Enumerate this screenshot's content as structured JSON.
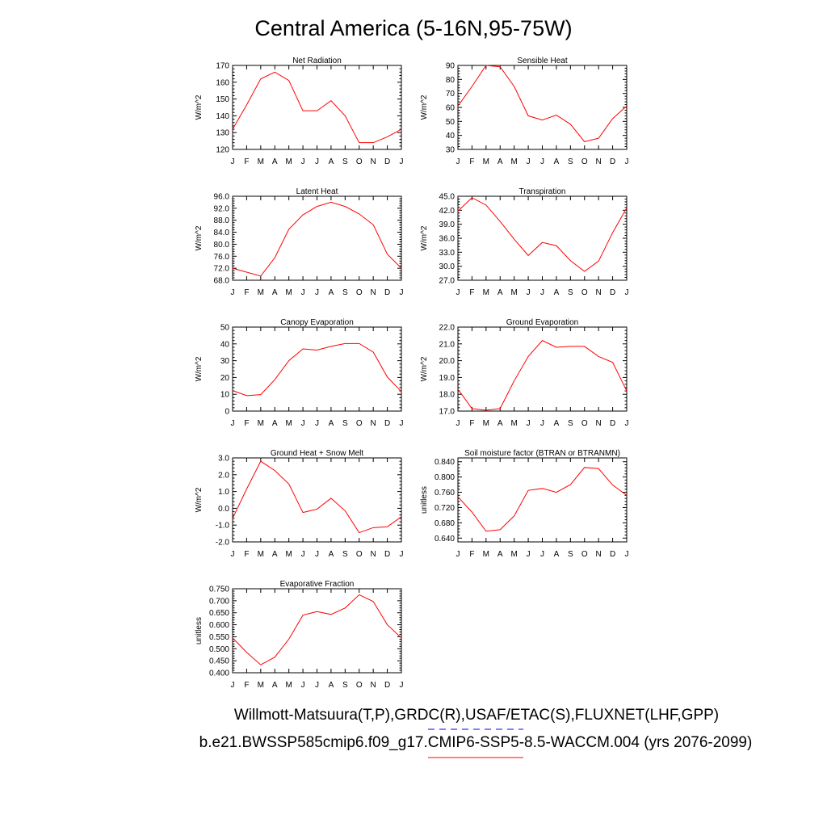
{
  "figure": {
    "title": "Central America (5-16N,95-75W)",
    "legend": [
      {
        "text": "Willmott-Matsuura(T,P),GRDC(R),USAF/ETAC(S),FLUXNET(LHF,GPP)",
        "color": "#0000ff",
        "style": "dashed"
      },
      {
        "text": "b.e21.BWSSP585cmip6.f09_g17.CMIP6-SSP5-8.5-WACCM.004 (yrs 2076-2099)",
        "color": "#ff0000",
        "style": "solid"
      }
    ],
    "months": [
      "J",
      "F",
      "M",
      "A",
      "M",
      "J",
      "J",
      "A",
      "S",
      "O",
      "N",
      "D",
      "J"
    ],
    "line_color": "#ff0000"
  },
  "chart_data": [
    {
      "type": "line",
      "title": "Net Radiation",
      "ylabel": "W/m^2",
      "ylim": [
        120,
        170
      ],
      "ytick_values": [
        120,
        130,
        140,
        150,
        160,
        170
      ],
      "ytick_labels": [
        "120",
        "130",
        "140",
        "150",
        "160",
        "170"
      ],
      "values": [
        132,
        146.5,
        162,
        166,
        161,
        143,
        143,
        149,
        140,
        124,
        124,
        127.5,
        132
      ]
    },
    {
      "type": "line",
      "title": "Sensible Heat",
      "ylabel": "W/m^2",
      "ylim": [
        30,
        90
      ],
      "ytick_values": [
        30,
        40,
        50,
        60,
        70,
        80,
        90
      ],
      "ytick_labels": [
        "30",
        "40",
        "50",
        "60",
        "70",
        "80",
        "90"
      ],
      "values": [
        61,
        75,
        90,
        89,
        75,
        54,
        51,
        54.5,
        48,
        35.5,
        38,
        52,
        61
      ]
    },
    {
      "type": "line",
      "title": "Latent Heat",
      "ylabel": "W/m^2",
      "ylim": [
        68,
        96
      ],
      "ytick_values": [
        68,
        72,
        76,
        80,
        84,
        88,
        92,
        96
      ],
      "ytick_labels": [
        "68.0",
        "72.0",
        "76.0",
        "80.0",
        "84.0",
        "88.0",
        "92.0",
        "96.0"
      ],
      "values": [
        72,
        70.7,
        69.4,
        75.5,
        85,
        89.8,
        92.6,
        94,
        92.6,
        90.1,
        86.5,
        76.7,
        72
      ]
    },
    {
      "type": "line",
      "title": "Transpiration",
      "ylabel": "W/m^2",
      "ylim": [
        27,
        45
      ],
      "ytick_values": [
        27,
        30,
        33,
        36,
        39,
        42,
        45
      ],
      "ytick_labels": [
        "27.0",
        "30.0",
        "33.0",
        "36.0",
        "39.0",
        "42.0",
        "45.0"
      ],
      "values": [
        41.8,
        44.7,
        43.1,
        39.6,
        35.8,
        32.3,
        35.1,
        34.4,
        31.2,
        28.9,
        31.1,
        37.2,
        42.5
      ]
    },
    {
      "type": "line",
      "title": "Canopy Evaporation",
      "ylabel": "W/m^2",
      "ylim": [
        0,
        50
      ],
      "ytick_values": [
        0,
        10,
        20,
        30,
        40,
        50
      ],
      "ytick_labels": [
        "0",
        "10",
        "20",
        "30",
        "40",
        "50"
      ],
      "values": [
        12.2,
        9.2,
        9.8,
        18.7,
        30,
        37,
        36.3,
        38.5,
        40.2,
        40.2,
        35.1,
        20.3,
        11.5
      ]
    },
    {
      "type": "line",
      "title": "Ground Evaporation",
      "ylabel": "W/m^2",
      "ylim": [
        17,
        22
      ],
      "ytick_values": [
        17,
        18,
        19,
        20,
        21,
        22
      ],
      "ytick_labels": [
        "17.0",
        "18.0",
        "19.0",
        "20.0",
        "21.0",
        "22.0"
      ],
      "values": [
        18.3,
        17.15,
        17.05,
        17.15,
        18.8,
        20.25,
        21.2,
        20.8,
        20.85,
        20.85,
        20.25,
        19.9,
        18.2
      ]
    },
    {
      "type": "line",
      "title": "Ground Heat + Snow Melt",
      "ylabel": "W/m^2",
      "ylim": [
        -2,
        3
      ],
      "ytick_values": [
        -2,
        -1,
        0,
        1,
        2,
        3
      ],
      "ytick_labels": [
        "-2.0",
        "-1.0",
        "0.0",
        "1.0",
        "2.0",
        "3.0"
      ],
      "values": [
        -0.6,
        1.15,
        2.8,
        2.25,
        1.45,
        -0.25,
        -0.05,
        0.6,
        -0.15,
        -1.45,
        -1.15,
        -1.1,
        -0.5
      ]
    },
    {
      "type": "line",
      "title": "Soil moisture factor (BTRAN or BTRANMN)",
      "ylabel": "unitless",
      "ylim": [
        0.63,
        0.85
      ],
      "ytick_values": [
        0.64,
        0.68,
        0.72,
        0.76,
        0.8,
        0.84
      ],
      "ytick_labels": [
        "0.640",
        "0.680",
        "0.720",
        "0.760",
        "0.800",
        "0.840"
      ],
      "values": [
        0.748,
        0.708,
        0.658,
        0.662,
        0.698,
        0.765,
        0.77,
        0.76,
        0.78,
        0.825,
        0.822,
        0.779,
        0.752
      ]
    },
    {
      "type": "line",
      "title": "Evaporative Fraction",
      "ylabel": "unitless",
      "ylim": [
        0.4,
        0.75
      ],
      "ytick_values": [
        0.4,
        0.45,
        0.5,
        0.55,
        0.6,
        0.65,
        0.7,
        0.75
      ],
      "ytick_labels": [
        "0.400",
        "0.450",
        "0.500",
        "0.550",
        "0.600",
        "0.650",
        "0.700",
        "0.750"
      ],
      "values": [
        0.545,
        0.485,
        0.433,
        0.465,
        0.54,
        0.64,
        0.655,
        0.643,
        0.67,
        0.725,
        0.697,
        0.6,
        0.545
      ]
    }
  ]
}
